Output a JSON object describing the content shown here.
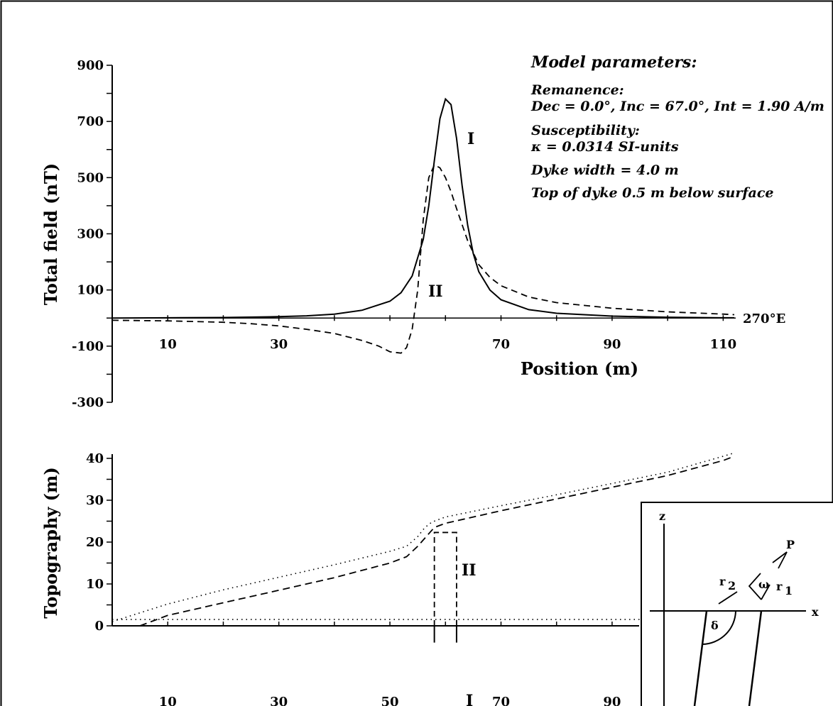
{
  "chart_data": [
    {
      "type": "line",
      "title": "",
      "xlabel": "Position (m)",
      "ylabel": "Total field (nT)",
      "xlim": [
        0,
        112
      ],
      "ylim": [
        -300,
        900
      ],
      "x_ticks": [
        10,
        30,
        70,
        90,
        110
      ],
      "y_ticks": [
        -300,
        -100,
        100,
        300,
        500,
        700,
        900
      ],
      "grid": false,
      "direction_label": "270°E",
      "series": [
        {
          "name": "I",
          "style": "solid",
          "x": [
            0,
            10,
            20,
            30,
            35,
            40,
            45,
            50,
            52,
            54,
            56,
            57,
            58,
            59,
            60,
            61,
            62,
            63,
            64,
            65,
            66,
            68,
            70,
            75,
            80,
            90,
            100,
            110,
            112
          ],
          "y": [
            0,
            1,
            2,
            5,
            8,
            14,
            28,
            60,
            90,
            150,
            280,
            400,
            560,
            710,
            780,
            760,
            640,
            470,
            330,
            230,
            165,
            100,
            65,
            30,
            17,
            7,
            3,
            1,
            1
          ]
        },
        {
          "name": "II",
          "style": "dashed",
          "x": [
            0,
            10,
            20,
            25,
            30,
            35,
            40,
            45,
            48,
            50,
            52,
            53,
            54,
            55,
            56,
            57,
            58,
            59,
            60,
            61,
            62,
            64,
            66,
            68,
            70,
            75,
            80,
            90,
            100,
            110,
            112
          ],
          "y": [
            -8,
            -10,
            -15,
            -20,
            -28,
            -40,
            -55,
            -80,
            -100,
            -120,
            -125,
            -105,
            -40,
            100,
            350,
            500,
            545,
            535,
            500,
            450,
            390,
            275,
            190,
            145,
            115,
            75,
            55,
            35,
            22,
            14,
            12
          ]
        }
      ],
      "annotations": {
        "title": "Model parameters:",
        "lines": [
          "Remanence:",
          "Dec = 0.0°, Inc = 67.0°, Int = 1.90 A/m",
          "Susceptibility:",
          "κ = 0.0314 SI-units",
          "Dyke width = 4.0 m",
          "Top of dyke 0.5 m below surface"
        ],
        "curve_label_1": "I",
        "curve_label_2": "II"
      }
    },
    {
      "type": "line",
      "title": "",
      "xlabel": "",
      "ylabel": "Topography (m)",
      "xlim": [
        0,
        112
      ],
      "ylim": [
        0,
        40
      ],
      "x_ticks": [
        10,
        30,
        50,
        70,
        90
      ],
      "y_ticks": [
        0,
        10,
        20,
        30,
        40
      ],
      "grid": false,
      "series": [
        {
          "name": "",
          "style": "dotted",
          "x": [
            0,
            10,
            20,
            30,
            40,
            50,
            53,
            55,
            56,
            57,
            58,
            60,
            70,
            80,
            90,
            100,
            110,
            112
          ],
          "y": [
            1,
            5.2,
            8.6,
            11.6,
            14.6,
            17.8,
            19,
            21.3,
            23,
            24.3,
            25,
            26,
            28.7,
            31.3,
            34,
            36.7,
            40.5,
            41.3
          ]
        },
        {
          "name": "",
          "style": "dashed",
          "x": [
            5,
            10,
            20,
            30,
            40,
            50,
            53,
            55,
            57,
            58,
            59,
            60,
            70,
            80,
            90,
            100,
            110,
            112
          ],
          "y": [
            0,
            2.5,
            5.5,
            8.5,
            11.5,
            15,
            16.5,
            19,
            22,
            23.5,
            24,
            24.5,
            27.5,
            30.3,
            33.1,
            35.9,
            39.5,
            40.5
          ]
        },
        {
          "name": "",
          "style": "dotted",
          "x": [
            0,
            112
          ],
          "y": [
            1.5,
            1.5
          ]
        }
      ],
      "dykes": [
        {
          "label": "II",
          "style": "dashed",
          "x": [
            58,
            62
          ],
          "y": [
            0,
            22.3
          ]
        },
        {
          "label": "I",
          "style": "solid",
          "x": [
            58,
            62
          ],
          "y": [
            -4,
            0
          ]
        }
      ],
      "inset": {
        "labels": [
          "z",
          "x",
          "P",
          "r",
          "2",
          "r",
          "1",
          "ω",
          "δ"
        ]
      }
    }
  ]
}
